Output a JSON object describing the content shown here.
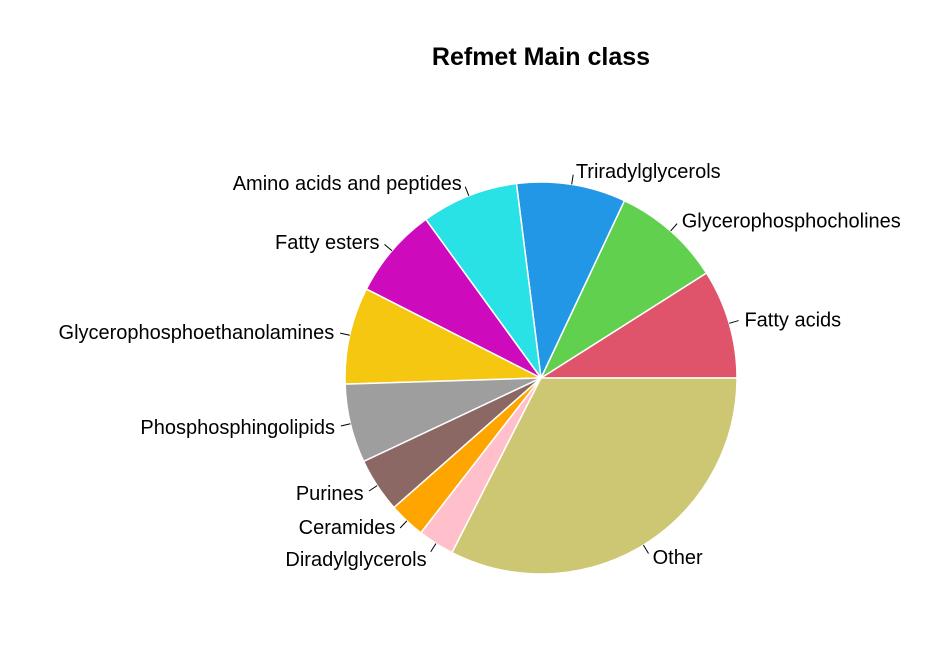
{
  "chart_data": {
    "type": "pie",
    "title": "Refmet Main class",
    "slices": [
      {
        "label": "Fatty acids",
        "value": 9,
        "color": "#DF536B"
      },
      {
        "label": "Glycerophosphocholines",
        "value": 9,
        "color": "#61D04F"
      },
      {
        "label": "Triradylglycerols",
        "value": 9,
        "color": "#2297E6"
      },
      {
        "label": "Amino acids and peptides",
        "value": 8,
        "color": "#28E2E5"
      },
      {
        "label": "Fatty esters",
        "value": 7.5,
        "color": "#CD0BBC"
      },
      {
        "label": "Glycerophosphoethanolamines",
        "value": 8,
        "color": "#F5C710"
      },
      {
        "label": "Phosphosphingolipids",
        "value": 6.5,
        "color": "#9E9E9E"
      },
      {
        "label": "Purines",
        "value": 4.5,
        "color": "#8B6863"
      },
      {
        "label": "Ceramides",
        "value": 3,
        "color": "#FFA500"
      },
      {
        "label": "Diradylglycerols",
        "value": 3,
        "color": "#FFC0CB"
      },
      {
        "label": "Other",
        "value": 32.5,
        "color": "#CDC673"
      }
    ],
    "start": "3 o'clock",
    "direction": "counterclockwise",
    "legend": "none"
  }
}
